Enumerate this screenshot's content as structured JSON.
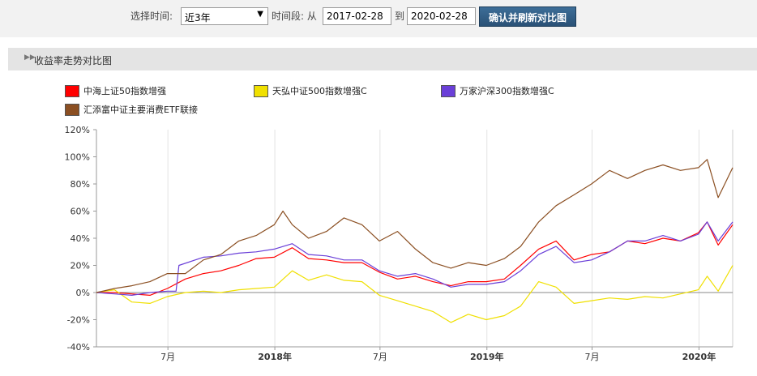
{
  "controls": {
    "time_label": "选择时间:",
    "time_select": "近3年",
    "period_label": "时间段: 从",
    "date_from": "2017-02-28",
    "to_label": "到",
    "date_to": "2020-02-28",
    "confirm_button": "确认并刷新对比图"
  },
  "panel": {
    "title": "收益率走势对比图"
  },
  "chart_data": {
    "type": "line",
    "title": "",
    "xlabel": "",
    "ylabel": "",
    "ylim": [
      -40,
      120
    ],
    "yticks": [
      "120%",
      "100%",
      "80%",
      "60%",
      "40%",
      "20%",
      "0%",
      "-20%",
      "-40%"
    ],
    "x_range": [
      "2017-02-28",
      "2020-02-28"
    ],
    "xticks": [
      {
        "label": "7月",
        "date": "2017-07-01",
        "bold": false
      },
      {
        "label": "2018年",
        "date": "2018-01-01",
        "bold": true
      },
      {
        "label": "7月",
        "date": "2018-07-01",
        "bold": false
      },
      {
        "label": "2019年",
        "date": "2019-01-01",
        "bold": true
      },
      {
        "label": "7月",
        "date": "2019-07-01",
        "bold": false
      },
      {
        "label": "2020年",
        "date": "2020-01-01",
        "bold": true
      }
    ],
    "grid": "vertical",
    "legend_position": "top",
    "series": [
      {
        "name": "中海上证50指数增强",
        "color": "#ff0000",
        "x": [
          "2017-02-28",
          "2017-03-31",
          "2017-04-30",
          "2017-05-31",
          "2017-06-30",
          "2017-07-31",
          "2017-08-31",
          "2017-09-30",
          "2017-10-31",
          "2017-11-30",
          "2017-12-31",
          "2018-01-31",
          "2018-02-28",
          "2018-03-31",
          "2018-04-30",
          "2018-05-31",
          "2018-06-30",
          "2018-07-31",
          "2018-08-31",
          "2018-09-30",
          "2018-10-31",
          "2018-11-30",
          "2018-12-31",
          "2019-01-31",
          "2019-02-28",
          "2019-03-31",
          "2019-04-30",
          "2019-05-31",
          "2019-06-30",
          "2019-07-31",
          "2019-08-31",
          "2019-09-30",
          "2019-10-31",
          "2019-11-30",
          "2019-12-31",
          "2020-01-15",
          "2020-02-03",
          "2020-02-28"
        ],
        "values": [
          0,
          0,
          -1,
          -2,
          3,
          10,
          14,
          16,
          20,
          25,
          26,
          33,
          25,
          24,
          22,
          22,
          15,
          10,
          12,
          8,
          5,
          8,
          8,
          10,
          20,
          32,
          38,
          24,
          28,
          30,
          38,
          36,
          40,
          38,
          44,
          52,
          35,
          50
        ]
      },
      {
        "name": "天弘中证500指数增强C",
        "color": "#f0e000",
        "x": [
          "2017-02-28",
          "2017-03-31",
          "2017-04-30",
          "2017-05-31",
          "2017-06-30",
          "2017-07-31",
          "2017-08-31",
          "2017-09-30",
          "2017-10-31",
          "2017-11-30",
          "2017-12-31",
          "2018-01-31",
          "2018-02-28",
          "2018-03-31",
          "2018-04-30",
          "2018-05-31",
          "2018-06-30",
          "2018-07-31",
          "2018-08-31",
          "2018-09-30",
          "2018-10-31",
          "2018-11-30",
          "2018-12-31",
          "2019-01-31",
          "2019-02-28",
          "2019-03-31",
          "2019-04-30",
          "2019-05-31",
          "2019-06-30",
          "2019-07-31",
          "2019-08-31",
          "2019-09-30",
          "2019-10-31",
          "2019-11-30",
          "2019-12-31",
          "2020-01-15",
          "2020-02-03",
          "2020-02-28"
        ],
        "values": [
          0,
          2,
          -7,
          -8,
          -3,
          0,
          1,
          0,
          2,
          3,
          4,
          16,
          9,
          13,
          9,
          8,
          -2,
          -6,
          -10,
          -14,
          -22,
          -16,
          -20,
          -17,
          -10,
          8,
          4,
          -8,
          -6,
          -4,
          -5,
          -3,
          -4,
          -1,
          2,
          12,
          1,
          20
        ]
      },
      {
        "name": "万家沪深300指数增强C",
        "color": "#6a3fd8",
        "x": [
          "2017-02-28",
          "2017-03-31",
          "2017-04-30",
          "2017-05-31",
          "2017-06-30",
          "2017-07-15",
          "2017-07-20",
          "2017-08-31",
          "2017-09-30",
          "2017-10-31",
          "2017-11-30",
          "2017-12-31",
          "2018-01-31",
          "2018-02-28",
          "2018-03-31",
          "2018-04-30",
          "2018-05-31",
          "2018-06-30",
          "2018-07-31",
          "2018-08-31",
          "2018-09-30",
          "2018-10-31",
          "2018-11-30",
          "2018-12-31",
          "2019-01-31",
          "2019-02-28",
          "2019-03-31",
          "2019-04-30",
          "2019-05-31",
          "2019-06-30",
          "2019-07-31",
          "2019-08-31",
          "2019-09-30",
          "2019-10-31",
          "2019-11-30",
          "2019-12-31",
          "2020-01-15",
          "2020-02-03",
          "2020-02-28"
        ],
        "values": [
          0,
          -1,
          -2,
          0,
          1,
          1,
          20,
          26,
          27,
          29,
          30,
          32,
          36,
          28,
          27,
          24,
          24,
          16,
          12,
          14,
          10,
          4,
          6,
          6,
          8,
          16,
          28,
          34,
          22,
          24,
          30,
          38,
          38,
          42,
          38,
          43,
          52,
          38,
          52
        ]
      },
      {
        "name": "汇添富中证主要消费ETF联接",
        "color": "#8b4f22",
        "x": [
          "2017-02-28",
          "2017-03-31",
          "2017-04-30",
          "2017-05-31",
          "2017-06-30",
          "2017-07-31",
          "2017-08-31",
          "2017-09-30",
          "2017-10-31",
          "2017-11-30",
          "2017-12-31",
          "2018-01-15",
          "2018-01-31",
          "2018-02-28",
          "2018-03-31",
          "2018-04-30",
          "2018-05-31",
          "2018-06-30",
          "2018-07-31",
          "2018-08-31",
          "2018-09-30",
          "2018-10-31",
          "2018-11-30",
          "2018-12-31",
          "2019-01-31",
          "2019-02-28",
          "2019-03-31",
          "2019-04-30",
          "2019-05-31",
          "2019-06-30",
          "2019-07-31",
          "2019-08-31",
          "2019-09-30",
          "2019-10-31",
          "2019-11-30",
          "2019-12-31",
          "2020-01-15",
          "2020-02-03",
          "2020-02-28"
        ],
        "values": [
          0,
          3,
          5,
          8,
          14,
          14,
          24,
          28,
          38,
          42,
          50,
          60,
          50,
          40,
          45,
          55,
          50,
          38,
          45,
          32,
          22,
          18,
          22,
          20,
          25,
          34,
          52,
          64,
          72,
          80,
          90,
          84,
          90,
          94,
          90,
          92,
          98,
          70,
          92
        ]
      }
    ]
  }
}
